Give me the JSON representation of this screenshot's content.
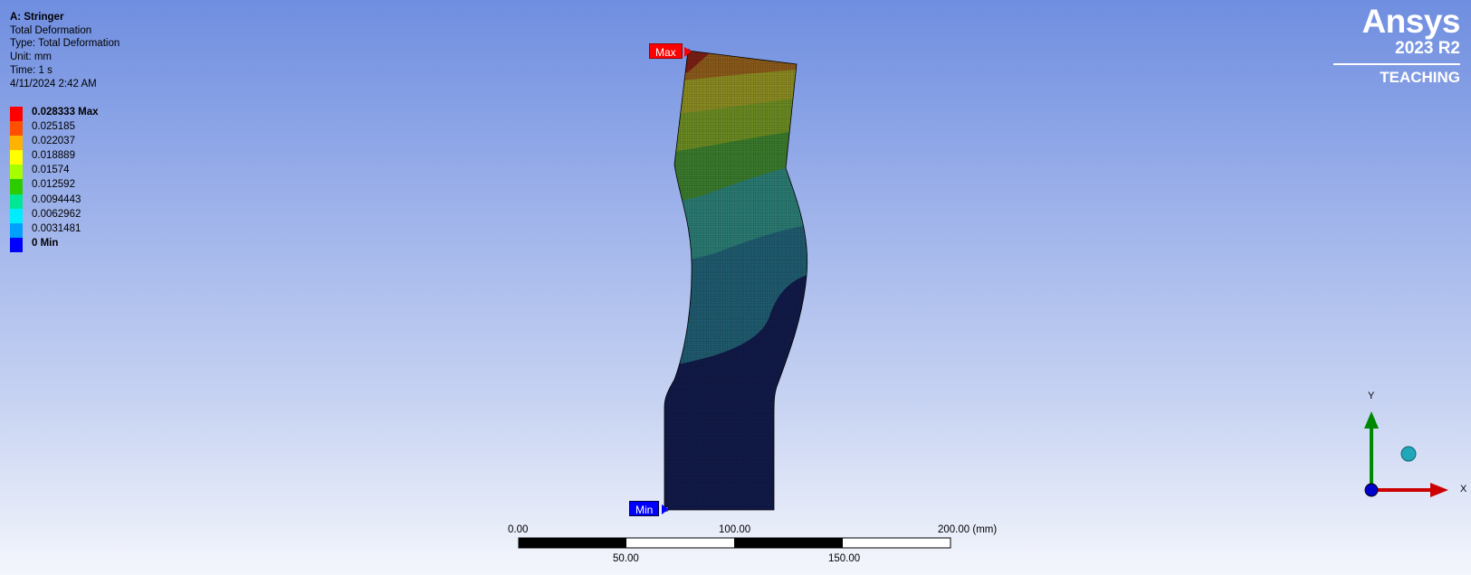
{
  "info": {
    "title": "A: Stringer",
    "line1": "Total Deformation",
    "line2": "Type: Total Deformation",
    "line3": "Unit: mm",
    "line4": "Time: 1 s",
    "line5": "4/11/2024 2:42 AM"
  },
  "legend": [
    {
      "label": "0.028333 Max",
      "color": "#ff0000",
      "bold": true
    },
    {
      "label": "0.025185",
      "color": "#ff4f00"
    },
    {
      "label": "0.022037",
      "color": "#ffb300"
    },
    {
      "label": "0.018889",
      "color": "#ffff00"
    },
    {
      "label": "0.01574",
      "color": "#a6ff00"
    },
    {
      "label": "0.012592",
      "color": "#2ccc00"
    },
    {
      "label": "0.0094443",
      "color": "#00e896"
    },
    {
      "label": "0.0062962",
      "color": "#00ecff"
    },
    {
      "label": "0.0031481",
      "color": "#00a0ff"
    },
    {
      "label": "0 Min",
      "color": "#0000ff",
      "bold": true
    }
  ],
  "logo": {
    "brand": "Ansys",
    "version": "2023 R2",
    "edition": "TEACHING"
  },
  "probes": {
    "max": "Max",
    "min": "Min"
  },
  "scale": {
    "top_labels": [
      "0.00",
      "100.00",
      "200.00 (mm)"
    ],
    "bottom_labels": [
      "50.00",
      "150.00"
    ]
  },
  "triad": {
    "x": "X",
    "y": "Y"
  },
  "colors": {
    "band_dark_navy": "#111a48",
    "band_teal": "#1f5b6f",
    "band_green": "#3a7a2c",
    "band_olive": "#8a8a22",
    "band_red": "#7a1f14",
    "axis_x": "#cc0000",
    "axis_y": "#008800",
    "origin": "#0000cc",
    "iso_ball": "#20a8b8"
  }
}
